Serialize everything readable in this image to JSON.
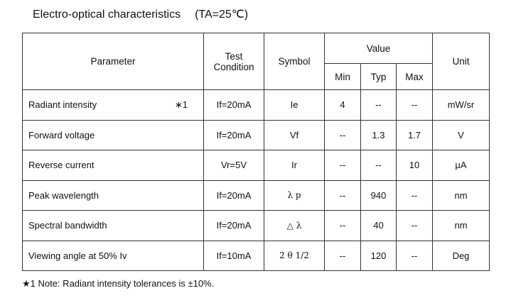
{
  "title": {
    "text": "Electro-optical characteristics",
    "condition": "(TA=25℃)"
  },
  "headers": {
    "parameter": "Parameter",
    "test_condition": "Test Condition",
    "symbol": "Symbol",
    "value": "Value",
    "min": "Min",
    "typ": "Typ",
    "max": "Max",
    "unit": "Unit"
  },
  "rows": [
    {
      "parameter": "Radiant intensity",
      "note": "∗1",
      "condition": "If=20mA",
      "symbol": "Ie",
      "min": "4",
      "typ": "--",
      "max": "--",
      "unit": "mW/sr"
    },
    {
      "parameter": "Forward voltage",
      "note": "",
      "condition": "If=20mA",
      "symbol": "Vf",
      "min": "--",
      "typ": "1.3",
      "max": "1.7",
      "unit": "V"
    },
    {
      "parameter": "Reverse current",
      "note": "",
      "condition": "Vr=5V",
      "symbol": "Ir",
      "min": "--",
      "typ": "--",
      "max": "10",
      "unit": "μA"
    },
    {
      "parameter": "Peak wavelength",
      "note": "",
      "condition": "If=20mA",
      "symbol": "λ p",
      "min": "--",
      "typ": "940",
      "max": "--",
      "unit": "nm"
    },
    {
      "parameter": "Spectral bandwidth",
      "note": "",
      "condition": "If=20mA",
      "symbol": "△ λ",
      "min": "--",
      "typ": "40",
      "max": "--",
      "unit": "nm"
    },
    {
      "parameter": "Viewing angle at 50% Iv",
      "note": "",
      "condition": "If=10mA",
      "symbol": "2 θ 1/2",
      "min": "--",
      "typ": "120",
      "max": "--",
      "unit": "Deg"
    }
  ],
  "footnote": "★1 Note: Radiant intensity tolerances is ±10%."
}
